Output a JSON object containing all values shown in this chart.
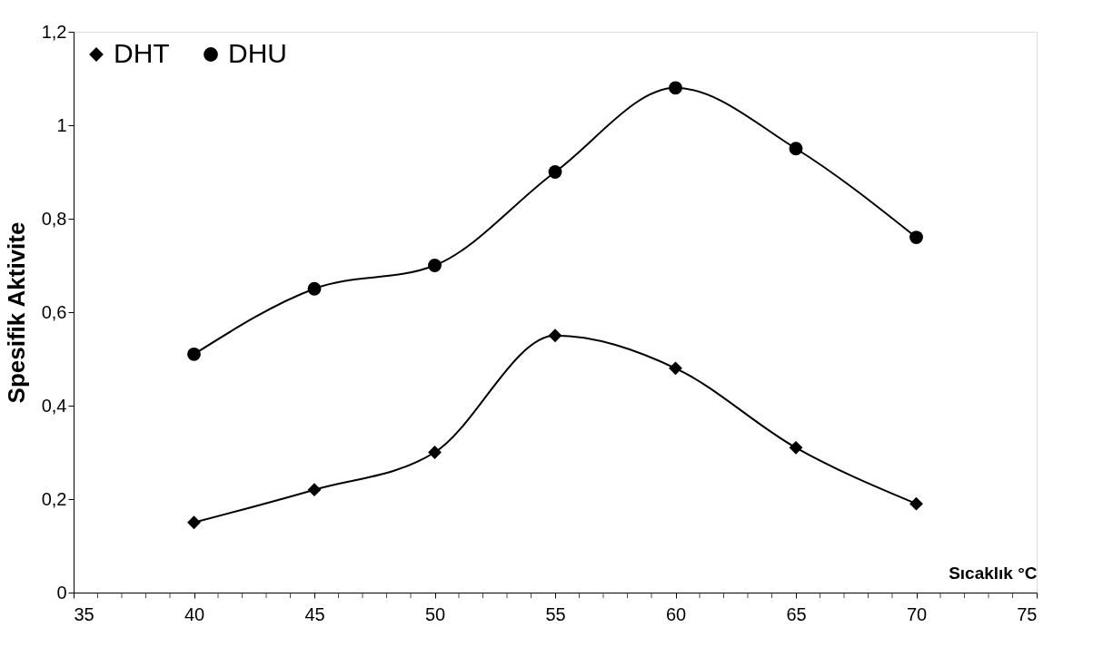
{
  "chart_data": {
    "type": "line",
    "xlabel": "Sıcaklık °C",
    "ylabel": "Spesifik Aktivite",
    "x": [
      40,
      45,
      50,
      55,
      60,
      65,
      70
    ],
    "series": [
      {
        "name": "DHT",
        "color": "#000000",
        "marker": "diamond",
        "values": [
          0.15,
          0.22,
          0.3,
          0.55,
          0.48,
          0.31,
          0.19
        ]
      },
      {
        "name": "DHU",
        "color": "#000000",
        "marker": "circle",
        "values": [
          0.51,
          0.65,
          0.7,
          0.9,
          1.08,
          0.95,
          0.76
        ]
      }
    ],
    "xlim": [
      35,
      75
    ],
    "xticks": [
      35,
      {
        "value": 36,
        "label": null
      },
      {
        "value": 37,
        "label": null
      },
      {
        "value": 38,
        "label": null
      },
      {
        "value": 39,
        "label": null
      },
      40,
      {
        "value": 41,
        "label": null
      },
      {
        "value": 42,
        "label": null
      },
      {
        "value": 43,
        "label": null
      },
      {
        "value": 44,
        "label": null
      },
      45,
      {
        "value": 46,
        "label": null
      },
      {
        "value": 47,
        "label": null
      },
      {
        "value": 48,
        "label": null
      },
      {
        "value": 49,
        "label": null
      },
      50,
      {
        "value": 51,
        "label": null
      },
      {
        "value": 52,
        "label": null
      },
      {
        "value": 53,
        "label": null
      },
      {
        "value": 54,
        "label": null
      },
      55,
      {
        "value": 56,
        "label": null
      },
      {
        "value": 57,
        "label": null
      },
      {
        "value": 58,
        "label": null
      },
      {
        "value": 59,
        "label": null
      },
      60,
      {
        "value": 61,
        "label": null
      },
      {
        "value": 62,
        "label": null
      },
      {
        "value": 63,
        "label": null
      },
      {
        "value": 64,
        "label": null
      },
      65,
      {
        "value": 66,
        "label": null
      },
      {
        "value": 67,
        "label": null
      },
      {
        "value": 68,
        "label": null
      },
      {
        "value": 69,
        "label": null
      },
      70,
      {
        "value": 71,
        "label": null
      },
      {
        "value": 72,
        "label": null
      },
      {
        "value": 73,
        "label": null
      },
      {
        "value": 74,
        "label": null
      },
      75
    ],
    "ylim": [
      0,
      1.2
    ],
    "yticks": [
      0,
      {
        "value": 0.2,
        "label": "0,2"
      },
      {
        "value": 0.4,
        "label": "0,4"
      },
      {
        "value": 0.6,
        "label": "0,6"
      },
      {
        "value": 0.8,
        "label": "0,8"
      },
      1,
      {
        "value": 1.2,
        "label": "1,2"
      }
    ],
    "grid": false,
    "legend": "top left",
    "line_style": "solid"
  }
}
